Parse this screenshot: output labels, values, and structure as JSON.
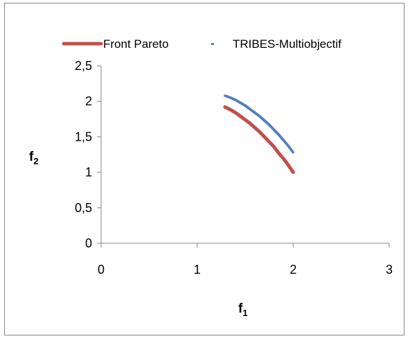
{
  "chart_data": {
    "type": "line",
    "title": "",
    "xlabel": {
      "main": "f",
      "sub": "1"
    },
    "ylabel": {
      "main": "f",
      "sub": "2"
    },
    "xlim": [
      0,
      3
    ],
    "ylim": [
      0,
      2.5
    ],
    "xticks": [
      0,
      1,
      2,
      3
    ],
    "xtick_labels": [
      "0",
      "1",
      "2",
      "3"
    ],
    "yticks": [
      0,
      0.5,
      1,
      1.5,
      2,
      2.5
    ],
    "ytick_labels": [
      "0",
      "0,5",
      "1",
      "1,5",
      "2",
      "2,5"
    ],
    "grid": false,
    "legend_position": "top",
    "series": [
      {
        "name": "Front Pareto",
        "style": "line",
        "color": "#c0504d",
        "x": [
          1.29,
          1.35,
          1.4,
          1.45,
          1.5,
          1.55,
          1.6,
          1.65,
          1.7,
          1.75,
          1.8,
          1.85,
          1.9,
          1.95,
          2.0
        ],
        "y": [
          1.92,
          1.88,
          1.84,
          1.79,
          1.74,
          1.69,
          1.63,
          1.57,
          1.5,
          1.43,
          1.36,
          1.27,
          1.19,
          1.1,
          1.0
        ]
      },
      {
        "name": "TRIBES-Multiobjectif",
        "style": "dots",
        "color": "#4f81bd",
        "x": [
          1.29,
          1.35,
          1.4,
          1.45,
          1.5,
          1.55,
          1.6,
          1.65,
          1.7,
          1.75,
          1.8,
          1.85,
          1.9,
          1.95,
          2.0
        ],
        "y": [
          2.08,
          2.05,
          2.02,
          1.98,
          1.94,
          1.89,
          1.84,
          1.79,
          1.73,
          1.67,
          1.6,
          1.53,
          1.45,
          1.37,
          1.28
        ]
      }
    ]
  }
}
